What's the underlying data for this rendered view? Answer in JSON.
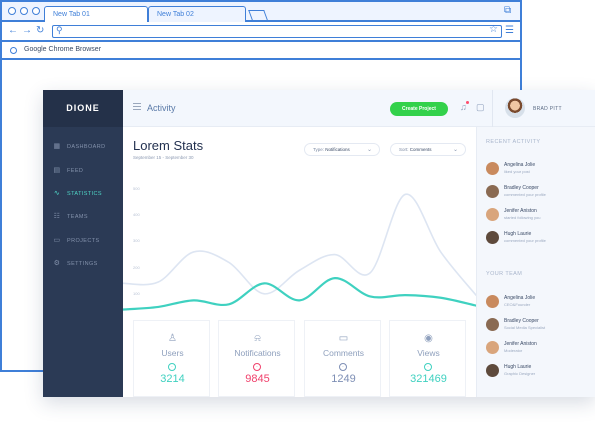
{
  "browser": {
    "tabs": [
      "New Tab 01",
      "New Tab 02"
    ],
    "bookmark": "Google Chrome Browser"
  },
  "app": {
    "logo": "DIONE",
    "header": {
      "title": "Activity",
      "create_button": "Create Project",
      "user_name": "BRAD PITT"
    },
    "sidebar": {
      "items": [
        {
          "label": "DASHBOARD",
          "icon": "grid-icon"
        },
        {
          "label": "FEED",
          "icon": "feed-icon"
        },
        {
          "label": "STATISTICS",
          "icon": "pulse-icon",
          "active": true
        },
        {
          "label": "TEAMS",
          "icon": "team-icon"
        },
        {
          "label": "PROJECTS",
          "icon": "folder-icon"
        },
        {
          "label": "SETTINGS",
          "icon": "gear-icon"
        }
      ]
    },
    "stats": {
      "title": "Lorem Stats",
      "date_range": "September 15 - September 30",
      "type_filter": {
        "label": "Type:",
        "value": "Notifications"
      },
      "sort_filter": {
        "label": "Sort:",
        "value": "Comments"
      }
    },
    "cards": [
      {
        "label": "Users",
        "value": "3214",
        "icon": "user-icon",
        "color": "#3fd1c0"
      },
      {
        "label": "Notifications",
        "value": "9845",
        "icon": "bell-icon",
        "color": "#f0416c"
      },
      {
        "label": "Comments",
        "value": "1249",
        "icon": "comment-icon",
        "color": "#7e8fb5"
      },
      {
        "label": "Views",
        "value": "321469",
        "icon": "eye-icon",
        "color": "#3fd1c0"
      }
    ],
    "recent_activity": {
      "heading": "RECENT ACTIVITY",
      "items": [
        {
          "name": "Angelina Jolie",
          "detail": "liked your post"
        },
        {
          "name": "Bradley Cooper",
          "detail": "commented your profile"
        },
        {
          "name": "Jenifer Aniston",
          "detail": "started following you"
        },
        {
          "name": "Hugh Laurie",
          "detail": "commented your profile"
        }
      ]
    },
    "your_team": {
      "heading": "YOUR TEAM",
      "items": [
        {
          "name": "Angelina Jolie",
          "detail": "CEO&Founder"
        },
        {
          "name": "Bradley Cooper",
          "detail": "Social Media Specialist"
        },
        {
          "name": "Jenifer Aniston",
          "detail": "Moderator"
        },
        {
          "name": "Hugh Laurie",
          "detail": "Graphic Designer"
        }
      ]
    }
  },
  "chart_data": {
    "type": "line",
    "y_ticks": [
      "500",
      "400",
      "300",
      "200",
      "100"
    ],
    "ylim": [
      0,
      550
    ],
    "series": [
      {
        "color": "#3fd1c0",
        "values": [
          40,
          50,
          75,
          60,
          140,
          75,
          160,
          90,
          95,
          85,
          55
        ]
      },
      {
        "color": "#dde5f2",
        "values": [
          140,
          145,
          260,
          220,
          100,
          190,
          250,
          180,
          480,
          260,
          95
        ]
      }
    ]
  }
}
